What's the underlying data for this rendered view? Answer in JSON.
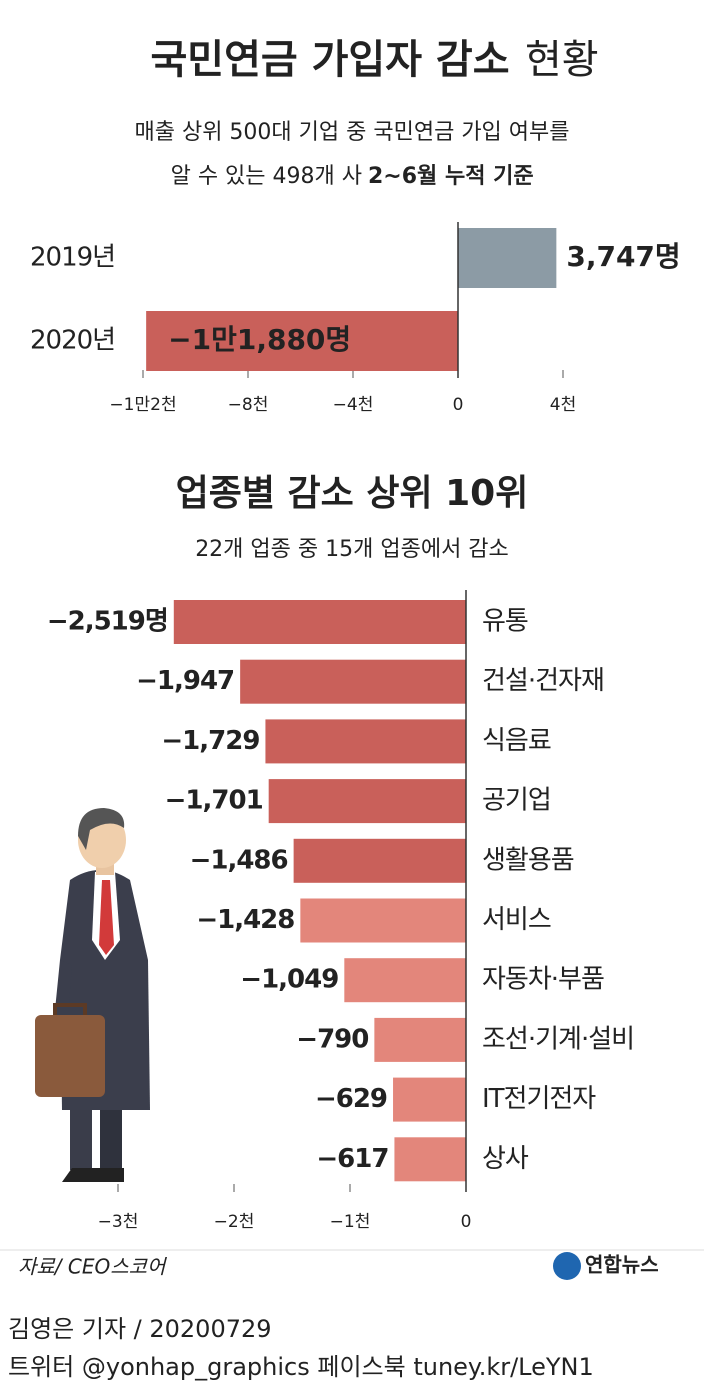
{
  "chart_data": [
    {
      "type": "hbar",
      "title": "국민연금 가입자 감소",
      "title_suffix": "현황",
      "subtitle": [
        "매출 상위 500대 기업 중 국민연금 가입 여부를",
        "알 수 있는 498개 사"
      ],
      "subtitle_emphasis": "2~6월 누적 기준",
      "categories": [
        "2019년",
        "2020년"
      ],
      "values": [
        3747,
        -11880
      ],
      "value_labels": [
        "3,747명",
        "−1만1,880명"
      ],
      "colors": [
        "#8c9ba5",
        "#c9605a"
      ],
      "xlim": [
        -12000,
        4000
      ],
      "xticks": [
        {
          "value": -12000,
          "label": "−1만2천"
        },
        {
          "value": -8000,
          "label": "−8천"
        },
        {
          "value": -4000,
          "label": "−4천"
        },
        0,
        {
          "value": 4000,
          "label": "4천"
        }
      ]
    },
    {
      "type": "hbar",
      "title": "업종별 감소 상위 10위",
      "subtitle": "22개 업종 중 15개 업종에서 감소",
      "categories": [
        "유통",
        "건설·건자재",
        "식음료",
        "공기업",
        "생활용품",
        "서비스",
        "자동차·부품",
        "조선·기계·설비",
        "IT전기전자",
        "상사"
      ],
      "values": [
        -2519,
        -1947,
        -1729,
        -1701,
        -1486,
        -1428,
        -1049,
        -790,
        -629,
        -617
      ],
      "value_labels": [
        "−2,519명",
        "−1,947",
        "−1,729",
        "−1,701",
        "−1,486",
        "−1,428",
        "−1,049",
        "−790",
        "−629",
        "−617"
      ],
      "colors": [
        "#c9605a",
        "#c9605a",
        "#c9605a",
        "#c9605a",
        "#c9605a",
        "#e3867b",
        "#e3867b",
        "#e3867b",
        "#e3867b",
        "#e3867b"
      ],
      "xlim": [
        -3000,
        0
      ],
      "xticks": [
        {
          "value": -3000,
          "label": "−3천"
        },
        {
          "value": -2000,
          "label": "−2천"
        },
        {
          "value": -1000,
          "label": "−1천"
        },
        0
      ]
    }
  ],
  "source": "자료/ CEO스코어",
  "logo": "연합뉴스",
  "byline": "김영은 기자 / 20200729",
  "social": "트위터 @yonhap_graphics  페이스북 tuney.kr/LeYN1"
}
